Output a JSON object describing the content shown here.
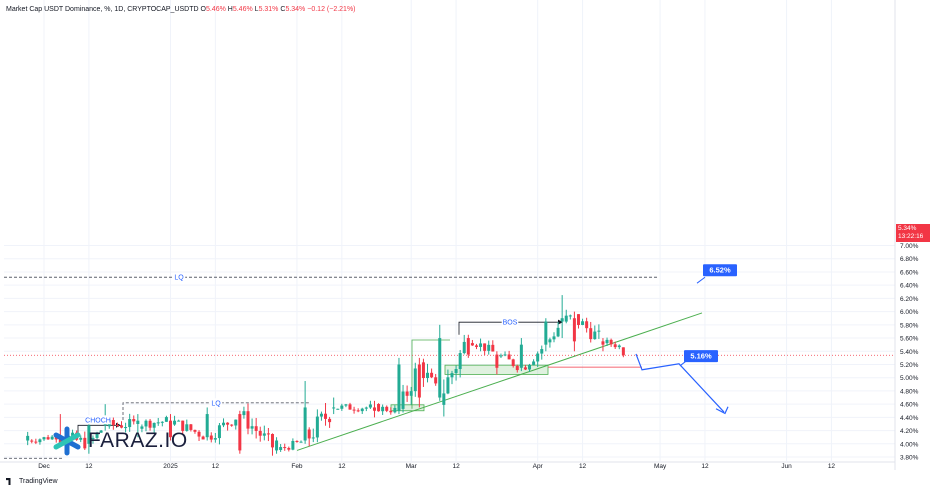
{
  "header": {
    "title": "Market Cap USDT Dominance, %, 1D, CRYPTOCAP_USDTD",
    "o_label": "O",
    "o_value": "5.46%",
    "h_label": "H",
    "h_value": "5.46%",
    "l_label": "L",
    "l_value": "5.31%",
    "c_label": "C",
    "c_value": "5.34%",
    "change": "−0.12 (−2.21%)"
  },
  "logo": {
    "text": "FARAZ.IO",
    "icon": "faraz-star-logo"
  },
  "footer": {
    "brand": "TradingView",
    "icon": "tradingview-logo-icon"
  },
  "price_tag": {
    "value": "5.34%",
    "countdown": "13:22:16"
  },
  "colors": {
    "up": "#22ab94",
    "down": "#f23645",
    "trend": "#4caf50",
    "projection": "#2962ff",
    "grid": "#f0f3fa"
  },
  "chart_data": {
    "type": "candlestick",
    "ylim": [
      3.6,
      7.0
    ],
    "y_ticks": [
      "7.00%",
      "6.80%",
      "6.60%",
      "6.40%",
      "6.20%",
      "6.00%",
      "5.80%",
      "5.60%",
      "5.40%",
      "5.20%",
      "5.00%",
      "4.80%",
      "4.60%",
      "4.40%",
      "4.20%",
      "4.00%",
      "3.80%"
    ],
    "x_ticks": [
      "Dec",
      "12",
      "2025",
      "12",
      "Feb",
      "12",
      "Mar",
      "12",
      "Apr",
      "12",
      "May",
      "12",
      "Jun",
      "12"
    ],
    "candles_approx": [
      {
        "date": "2024-11-27",
        "o": 4.05,
        "h": 4.18,
        "l": 3.98,
        "c": 4.12
      },
      {
        "date": "2024-12-05",
        "o": 4.12,
        "h": 4.45,
        "l": 3.95,
        "c": 4.0
      },
      {
        "date": "2024-12-12",
        "o": 4.0,
        "h": 4.3,
        "l": 3.85,
        "c": 4.28
      },
      {
        "date": "2024-12-16",
        "o": 4.28,
        "h": 4.6,
        "l": 4.2,
        "c": 4.3
      },
      {
        "date": "2024-12-24",
        "o": 4.3,
        "h": 4.45,
        "l": 4.1,
        "c": 4.35
      },
      {
        "date": "2025-01-01",
        "o": 4.35,
        "h": 4.45,
        "l": 4.05,
        "c": 4.1
      },
      {
        "date": "2025-01-10",
        "o": 4.1,
        "h": 4.55,
        "l": 4.05,
        "c": 4.45
      },
      {
        "date": "2025-01-18",
        "o": 4.45,
        "h": 4.5,
        "l": 3.85,
        "c": 3.9
      },
      {
        "date": "2025-01-27",
        "o": 3.9,
        "h": 4.1,
        "l": 3.85,
        "c": 4.05
      },
      {
        "date": "2025-02-03",
        "o": 4.05,
        "h": 4.95,
        "l": 4.0,
        "c": 4.55
      },
      {
        "date": "2025-02-10",
        "o": 4.55,
        "h": 4.7,
        "l": 4.45,
        "c": 4.55
      },
      {
        "date": "2025-02-20",
        "o": 4.55,
        "h": 4.65,
        "l": 4.4,
        "c": 4.5
      },
      {
        "date": "2025-02-26",
        "o": 4.5,
        "h": 5.3,
        "l": 4.45,
        "c": 5.2
      },
      {
        "date": "2025-03-03",
        "o": 5.2,
        "h": 5.3,
        "l": 4.55,
        "c": 4.7
      },
      {
        "date": "2025-03-08",
        "o": 4.7,
        "h": 5.8,
        "l": 4.65,
        "c": 5.6
      },
      {
        "date": "2025-03-15",
        "o": 5.6,
        "h": 5.65,
        "l": 5.3,
        "c": 5.35
      },
      {
        "date": "2025-03-22",
        "o": 5.35,
        "h": 5.4,
        "l": 5.05,
        "c": 5.15
      },
      {
        "date": "2025-03-28",
        "o": 5.15,
        "h": 5.6,
        "l": 5.1,
        "c": 5.5
      },
      {
        "date": "2025-04-03",
        "o": 5.5,
        "h": 5.9,
        "l": 5.4,
        "c": 5.85
      },
      {
        "date": "2025-04-07",
        "o": 5.85,
        "h": 6.25,
        "l": 5.6,
        "c": 5.9
      },
      {
        "date": "2025-04-10",
        "o": 5.9,
        "h": 6.0,
        "l": 5.4,
        "c": 5.55
      },
      {
        "date": "2025-04-17",
        "o": 5.55,
        "h": 5.6,
        "l": 5.4,
        "c": 5.5
      },
      {
        "date": "2025-04-22",
        "o": 5.46,
        "h": 5.46,
        "l": 5.31,
        "c": 5.34
      }
    ],
    "annotations": [
      {
        "text": "LQ",
        "level": 6.52
      },
      {
        "text": "LQ",
        "level": 4.62
      },
      {
        "text": "CHOCH",
        "level": 4.28
      },
      {
        "text": "BOS",
        "level": 5.84
      },
      {
        "text": "6.52%",
        "level": 6.52
      },
      {
        "text": "5.16%",
        "level": 5.16
      }
    ]
  }
}
